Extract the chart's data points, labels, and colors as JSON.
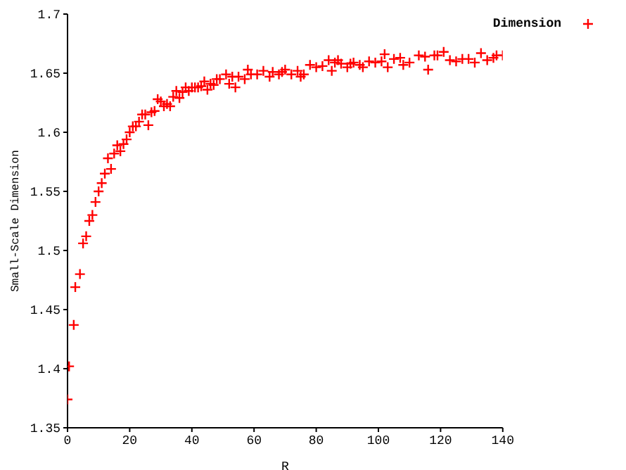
{
  "chart_data": {
    "type": "scatter",
    "xlabel": "R",
    "ylabel": "Small-Scale Dimension",
    "x": [
      0,
      0.5,
      2,
      2.5,
      4,
      5,
      6,
      7,
      8,
      9,
      10,
      11,
      12,
      13,
      14,
      15,
      16,
      17,
      18,
      19,
      20,
      21,
      22,
      23,
      24,
      25,
      26,
      27,
      28,
      29,
      30,
      31,
      32,
      33,
      34,
      35,
      36,
      37,
      38,
      39,
      40,
      41,
      42,
      43,
      44,
      45,
      46,
      47,
      48,
      49,
      51,
      52,
      53,
      54,
      55,
      57,
      58,
      59,
      61,
      63,
      65,
      66,
      68,
      69,
      70,
      72,
      74,
      75,
      76,
      78,
      80,
      82,
      84,
      85,
      86,
      87,
      88,
      90,
      91,
      92,
      94,
      95,
      97,
      99,
      101,
      102,
      103,
      105,
      107,
      108,
      110,
      113,
      115,
      116,
      118,
      119,
      121,
      123,
      125,
      127,
      129,
      131,
      133,
      135,
      137,
      138,
      140
    ],
    "series": [
      {
        "name": "Dimension",
        "color": "#ff0000",
        "values": [
          1.374,
          1.402,
          1.437,
          1.469,
          1.48,
          1.506,
          1.512,
          1.525,
          1.53,
          1.541,
          1.55,
          1.557,
          1.565,
          1.578,
          1.569,
          1.582,
          1.589,
          1.584,
          1.59,
          1.594,
          1.6,
          1.605,
          1.605,
          1.609,
          1.615,
          1.615,
          1.606,
          1.617,
          1.618,
          1.628,
          1.626,
          1.622,
          1.624,
          1.622,
          1.63,
          1.635,
          1.629,
          1.634,
          1.638,
          1.635,
          1.638,
          1.638,
          1.638,
          1.639,
          1.643,
          1.636,
          1.641,
          1.64,
          1.645,
          1.645,
          1.649,
          1.641,
          1.647,
          1.638,
          1.647,
          1.645,
          1.653,
          1.649,
          1.649,
          1.652,
          1.647,
          1.651,
          1.649,
          1.651,
          1.653,
          1.649,
          1.652,
          1.647,
          1.649,
          1.657,
          1.655,
          1.656,
          1.661,
          1.652,
          1.659,
          1.661,
          1.658,
          1.655,
          1.658,
          1.659,
          1.657,
          1.655,
          1.66,
          1.659,
          1.66,
          1.666,
          1.655,
          1.662,
          1.663,
          1.657,
          1.659,
          1.665,
          1.664,
          1.653,
          1.665,
          1.665,
          1.668,
          1.661,
          1.66,
          1.662,
          1.662,
          1.659,
          1.667,
          1.661,
          1.663,
          1.665,
          1.665
        ]
      }
    ],
    "xlim": [
      0,
      140
    ],
    "xticks": [
      0,
      20,
      40,
      60,
      80,
      100,
      120,
      140
    ],
    "ylim": [
      1.35,
      1.7
    ],
    "yticks": [
      1.35,
      1.4,
      1.45,
      1.5,
      1.55,
      1.6,
      1.65,
      1.7
    ],
    "marker": "cross",
    "legend": "top right",
    "grid": false
  }
}
